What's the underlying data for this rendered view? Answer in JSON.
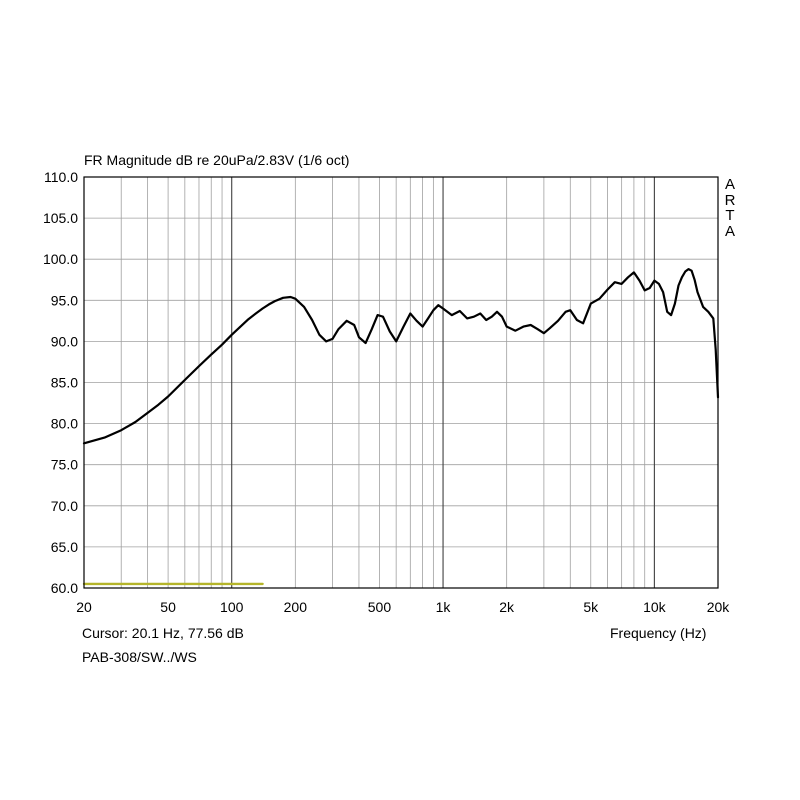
{
  "chart_data": {
    "type": "line",
    "title": "FR Magnitude dB re 20uPa/2.83V (1/6 oct)",
    "xlabel": "Frequency (Hz)",
    "ylabel": "",
    "xscale": "log",
    "xlim": [
      20,
      20000
    ],
    "ylim": [
      60,
      110
    ],
    "grid": true,
    "x_tick_labels": [
      {
        "value": 20,
        "label": "20"
      },
      {
        "value": 50,
        "label": "50"
      },
      {
        "value": 100,
        "label": "100"
      },
      {
        "value": 200,
        "label": "200"
      },
      {
        "value": 500,
        "label": "500"
      },
      {
        "value": 1000,
        "label": "1k"
      },
      {
        "value": 2000,
        "label": "2k"
      },
      {
        "value": 5000,
        "label": "5k"
      },
      {
        "value": 10000,
        "label": "10k"
      },
      {
        "value": 20000,
        "label": "20k"
      }
    ],
    "y_tick_labels": [
      {
        "value": 60,
        "label": "60.0"
      },
      {
        "value": 65,
        "label": "65.0"
      },
      {
        "value": 70,
        "label": "70.0"
      },
      {
        "value": 75,
        "label": "75.0"
      },
      {
        "value": 80,
        "label": "80.0"
      },
      {
        "value": 85,
        "label": "85.0"
      },
      {
        "value": 90,
        "label": "90.0"
      },
      {
        "value": 95,
        "label": "95.0"
      },
      {
        "value": 100,
        "label": "100.0"
      },
      {
        "value": 105,
        "label": "105.0"
      },
      {
        "value": 110,
        "label": "110.0"
      }
    ],
    "series": [
      {
        "color": "#000000",
        "x": [
          20,
          25,
          30,
          35,
          40,
          45,
          50,
          60,
          70,
          80,
          90,
          100,
          110,
          120,
          130,
          140,
          150,
          160,
          175,
          190,
          200,
          220,
          240,
          260,
          280,
          300,
          320,
          350,
          380,
          400,
          430,
          460,
          490,
          520,
          560,
          600,
          650,
          700,
          750,
          800,
          850,
          900,
          950,
          1000,
          1100,
          1200,
          1300,
          1400,
          1500,
          1600,
          1700,
          1800,
          1900,
          2000,
          2200,
          2400,
          2600,
          2800,
          3000,
          3200,
          3500,
          3800,
          4000,
          4300,
          4600,
          5000,
          5500,
          6000,
          6500,
          7000,
          7500,
          8000,
          8500,
          9000,
          9500,
          10000,
          10500,
          11000,
          11500,
          12000,
          12500,
          13000,
          13500,
          14000,
          14500,
          15000,
          15500,
          16000,
          17000,
          18000,
          19000,
          19500,
          20000
        ],
        "y": [
          77.6,
          78.3,
          79.2,
          80.2,
          81.3,
          82.3,
          83.3,
          85.3,
          87.0,
          88.4,
          89.6,
          90.8,
          91.8,
          92.7,
          93.4,
          94.0,
          94.5,
          94.9,
          95.3,
          95.4,
          95.2,
          94.2,
          92.6,
          90.8,
          90.0,
          90.3,
          91.5,
          92.5,
          92.0,
          90.5,
          89.8,
          91.5,
          93.2,
          93.0,
          91.2,
          90.0,
          91.8,
          93.4,
          92.5,
          91.8,
          92.8,
          93.8,
          94.4,
          94.0,
          93.2,
          93.7,
          92.8,
          93.0,
          93.4,
          92.6,
          93.0,
          93.6,
          93.0,
          91.8,
          91.3,
          91.8,
          92.0,
          91.5,
          91.0,
          91.6,
          92.5,
          93.6,
          93.8,
          92.6,
          92.2,
          94.6,
          95.2,
          96.3,
          97.2,
          97.0,
          97.8,
          98.4,
          97.4,
          96.2,
          96.5,
          97.4,
          97.0,
          96.0,
          93.6,
          93.2,
          94.6,
          96.8,
          97.8,
          98.5,
          98.8,
          98.6,
          97.5,
          96.0,
          94.2,
          93.6,
          92.8,
          89.0,
          83.2
        ]
      },
      {
        "color": "#b5b52a",
        "x": [
          20,
          140
        ],
        "y": [
          60.5,
          60.5
        ]
      }
    ]
  },
  "cursor_readout": "Cursor: 20.1 Hz, 77.56 dB",
  "measurement_label": "PAB-308/SW../WS",
  "brand_letters": [
    "A",
    "R",
    "T",
    "A"
  ]
}
